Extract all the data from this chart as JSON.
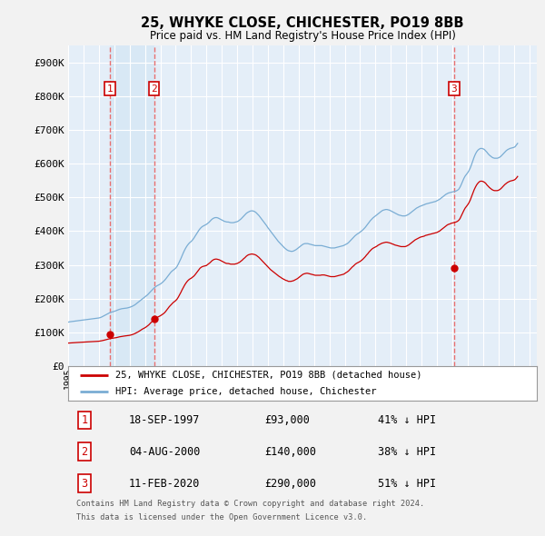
{
  "title": "25, WHYKE CLOSE, CHICHESTER, PO19 8BB",
  "subtitle": "Price paid vs. HM Land Registry's House Price Index (HPI)",
  "ylim": [
    0,
    950000
  ],
  "yticks": [
    0,
    100000,
    200000,
    300000,
    400000,
    500000,
    600000,
    700000,
    800000,
    900000
  ],
  "ytick_labels": [
    "£0",
    "£100K",
    "£200K",
    "£300K",
    "£400K",
    "£500K",
    "£600K",
    "£700K",
    "£800K",
    "£900K"
  ],
  "xlim_start": 1995.0,
  "xlim_end": 2025.5,
  "price_paid_color": "#cc0000",
  "hpi_color": "#7aadd4",
  "hpi_fill_color": "#c8dff0",
  "vline_color": "#e87070",
  "transaction_marker_color": "#cc0000",
  "background_color": "#f2f2f2",
  "plot_bg_color": "#e4eef8",
  "vband_color": "#d0e4f4",
  "grid_color": "#ffffff",
  "transactions": [
    {
      "date": 1997.72,
      "price": 93000,
      "label": "1"
    },
    {
      "date": 2000.59,
      "price": 140000,
      "label": "2"
    },
    {
      "date": 2020.12,
      "price": 290000,
      "label": "3"
    }
  ],
  "legend_line1": "25, WHYKE CLOSE, CHICHESTER, PO19 8BB (detached house)",
  "legend_line2": "HPI: Average price, detached house, Chichester",
  "table_data": [
    {
      "num": "1",
      "date": "18-SEP-1997",
      "price": "£93,000",
      "hpi_note": "41% ↓ HPI"
    },
    {
      "num": "2",
      "date": "04-AUG-2000",
      "price": "£140,000",
      "hpi_note": "38% ↓ HPI"
    },
    {
      "num": "3",
      "date": "11-FEB-2020",
      "price": "£290,000",
      "hpi_note": "51% ↓ HPI"
    }
  ],
  "footer_line1": "Contains HM Land Registry data © Crown copyright and database right 2024.",
  "footer_line2": "This data is licensed under the Open Government Licence v3.0.",
  "hpi_monthly_x": [
    1995.0,
    1995.083,
    1995.167,
    1995.25,
    1995.333,
    1995.417,
    1995.5,
    1995.583,
    1995.667,
    1995.75,
    1995.833,
    1995.917,
    1996.0,
    1996.083,
    1996.167,
    1996.25,
    1996.333,
    1996.417,
    1996.5,
    1996.583,
    1996.667,
    1996.75,
    1996.833,
    1996.917,
    1997.0,
    1997.083,
    1997.167,
    1997.25,
    1997.333,
    1997.417,
    1997.5,
    1997.583,
    1997.667,
    1997.75,
    1997.833,
    1997.917,
    1998.0,
    1998.083,
    1998.167,
    1998.25,
    1998.333,
    1998.417,
    1998.5,
    1998.583,
    1998.667,
    1998.75,
    1998.833,
    1998.917,
    1999.0,
    1999.083,
    1999.167,
    1999.25,
    1999.333,
    1999.417,
    1999.5,
    1999.583,
    1999.667,
    1999.75,
    1999.833,
    1999.917,
    2000.0,
    2000.083,
    2000.167,
    2000.25,
    2000.333,
    2000.417,
    2000.5,
    2000.583,
    2000.667,
    2000.75,
    2000.833,
    2000.917,
    2001.0,
    2001.083,
    2001.167,
    2001.25,
    2001.333,
    2001.417,
    2001.5,
    2001.583,
    2001.667,
    2001.75,
    2001.833,
    2001.917,
    2002.0,
    2002.083,
    2002.167,
    2002.25,
    2002.333,
    2002.417,
    2002.5,
    2002.583,
    2002.667,
    2002.75,
    2002.833,
    2002.917,
    2003.0,
    2003.083,
    2003.167,
    2003.25,
    2003.333,
    2003.417,
    2003.5,
    2003.583,
    2003.667,
    2003.75,
    2003.833,
    2003.917,
    2004.0,
    2004.083,
    2004.167,
    2004.25,
    2004.333,
    2004.417,
    2004.5,
    2004.583,
    2004.667,
    2004.75,
    2004.833,
    2004.917,
    2005.0,
    2005.083,
    2005.167,
    2005.25,
    2005.333,
    2005.417,
    2005.5,
    2005.583,
    2005.667,
    2005.75,
    2005.833,
    2005.917,
    2006.0,
    2006.083,
    2006.167,
    2006.25,
    2006.333,
    2006.417,
    2006.5,
    2006.583,
    2006.667,
    2006.75,
    2006.833,
    2006.917,
    2007.0,
    2007.083,
    2007.167,
    2007.25,
    2007.333,
    2007.417,
    2007.5,
    2007.583,
    2007.667,
    2007.75,
    2007.833,
    2007.917,
    2008.0,
    2008.083,
    2008.167,
    2008.25,
    2008.333,
    2008.417,
    2008.5,
    2008.583,
    2008.667,
    2008.75,
    2008.833,
    2008.917,
    2009.0,
    2009.083,
    2009.167,
    2009.25,
    2009.333,
    2009.417,
    2009.5,
    2009.583,
    2009.667,
    2009.75,
    2009.833,
    2009.917,
    2010.0,
    2010.083,
    2010.167,
    2010.25,
    2010.333,
    2010.417,
    2010.5,
    2010.583,
    2010.667,
    2010.75,
    2010.833,
    2010.917,
    2011.0,
    2011.083,
    2011.167,
    2011.25,
    2011.333,
    2011.417,
    2011.5,
    2011.583,
    2011.667,
    2011.75,
    2011.833,
    2011.917,
    2012.0,
    2012.083,
    2012.167,
    2012.25,
    2012.333,
    2012.417,
    2012.5,
    2012.583,
    2012.667,
    2012.75,
    2012.833,
    2012.917,
    2013.0,
    2013.083,
    2013.167,
    2013.25,
    2013.333,
    2013.417,
    2013.5,
    2013.583,
    2013.667,
    2013.75,
    2013.833,
    2013.917,
    2014.0,
    2014.083,
    2014.167,
    2014.25,
    2014.333,
    2014.417,
    2014.5,
    2014.583,
    2014.667,
    2014.75,
    2014.833,
    2014.917,
    2015.0,
    2015.083,
    2015.167,
    2015.25,
    2015.333,
    2015.417,
    2015.5,
    2015.583,
    2015.667,
    2015.75,
    2015.833,
    2015.917,
    2016.0,
    2016.083,
    2016.167,
    2016.25,
    2016.333,
    2016.417,
    2016.5,
    2016.583,
    2016.667,
    2016.75,
    2016.833,
    2016.917,
    2017.0,
    2017.083,
    2017.167,
    2017.25,
    2017.333,
    2017.417,
    2017.5,
    2017.583,
    2017.667,
    2017.75,
    2017.833,
    2017.917,
    2018.0,
    2018.083,
    2018.167,
    2018.25,
    2018.333,
    2018.417,
    2018.5,
    2018.583,
    2018.667,
    2018.75,
    2018.833,
    2018.917,
    2019.0,
    2019.083,
    2019.167,
    2019.25,
    2019.333,
    2019.417,
    2019.5,
    2019.583,
    2019.667,
    2019.75,
    2019.833,
    2019.917,
    2020.0,
    2020.083,
    2020.167,
    2020.25,
    2020.333,
    2020.417,
    2020.5,
    2020.583,
    2020.667,
    2020.75,
    2020.833,
    2020.917,
    2021.0,
    2021.083,
    2021.167,
    2021.25,
    2021.333,
    2021.417,
    2021.5,
    2021.583,
    2021.667,
    2021.75,
    2021.833,
    2021.917,
    2022.0,
    2022.083,
    2022.167,
    2022.25,
    2022.333,
    2022.417,
    2022.5,
    2022.583,
    2022.667,
    2022.75,
    2022.833,
    2022.917,
    2023.0,
    2023.083,
    2023.167,
    2023.25,
    2023.333,
    2023.417,
    2023.5,
    2023.583,
    2023.667,
    2023.75,
    2023.833,
    2023.917,
    2024.0,
    2024.083,
    2024.167,
    2024.25
  ],
  "hpi_monthly_y": [
    130000,
    131000,
    131500,
    132000,
    132500,
    133000,
    133500,
    134000,
    134500,
    135000,
    135500,
    136000,
    136500,
    137000,
    137500,
    138000,
    138500,
    139000,
    139500,
    140000,
    140500,
    141000,
    141500,
    142000,
    142500,
    143500,
    145000,
    147000,
    149000,
    151000,
    153000,
    155000,
    157000,
    159000,
    160000,
    161000,
    162000,
    163500,
    165000,
    166500,
    168000,
    169000,
    170000,
    170500,
    171000,
    171500,
    172000,
    173000,
    174000,
    175500,
    177000,
    179000,
    181000,
    184000,
    187000,
    190000,
    193000,
    196000,
    199000,
    202000,
    205000,
    208000,
    211000,
    215000,
    219000,
    223000,
    227000,
    231000,
    234000,
    237000,
    239000,
    241000,
    243000,
    246000,
    249000,
    253000,
    257000,
    262000,
    267000,
    272000,
    277000,
    281000,
    284000,
    287000,
    290000,
    295000,
    302000,
    310000,
    318000,
    327000,
    336000,
    344000,
    351000,
    357000,
    362000,
    366000,
    369000,
    373000,
    378000,
    384000,
    390000,
    396000,
    402000,
    407000,
    411000,
    414000,
    416000,
    418000,
    420000,
    423000,
    426000,
    430000,
    434000,
    437000,
    439000,
    440000,
    440000,
    439000,
    437000,
    435000,
    433000,
    431000,
    429000,
    428000,
    427000,
    427000,
    426000,
    425000,
    425000,
    425000,
    426000,
    427000,
    428000,
    430000,
    433000,
    436000,
    440000,
    444000,
    448000,
    452000,
    455000,
    457000,
    459000,
    460000,
    460000,
    459000,
    457000,
    454000,
    450000,
    446000,
    441000,
    436000,
    431000,
    426000,
    421000,
    416000,
    410000,
    405000,
    400000,
    395000,
    390000,
    385000,
    380000,
    375000,
    370000,
    366000,
    362000,
    358000,
    354000,
    350000,
    347000,
    344000,
    342000,
    341000,
    340000,
    340000,
    341000,
    343000,
    345000,
    348000,
    351000,
    354000,
    357000,
    360000,
    362000,
    363000,
    363000,
    363000,
    362000,
    361000,
    360000,
    359000,
    358000,
    357000,
    357000,
    357000,
    357000,
    357000,
    357000,
    356000,
    355000,
    354000,
    353000,
    352000,
    351000,
    350000,
    350000,
    350000,
    350000,
    351000,
    352000,
    353000,
    354000,
    355000,
    356000,
    357000,
    359000,
    361000,
    363000,
    366000,
    370000,
    374000,
    378000,
    382000,
    386000,
    389000,
    392000,
    394000,
    397000,
    400000,
    403000,
    407000,
    411000,
    416000,
    421000,
    426000,
    431000,
    435000,
    439000,
    442000,
    445000,
    448000,
    451000,
    454000,
    457000,
    460000,
    462000,
    463000,
    464000,
    464000,
    463000,
    462000,
    460000,
    458000,
    456000,
    454000,
    452000,
    450000,
    448000,
    447000,
    446000,
    445000,
    445000,
    445000,
    446000,
    448000,
    450000,
    453000,
    456000,
    459000,
    462000,
    465000,
    468000,
    470000,
    472000,
    474000,
    475000,
    477000,
    478000,
    480000,
    481000,
    482000,
    483000,
    484000,
    485000,
    486000,
    487000,
    488000,
    490000,
    492000,
    494000,
    497000,
    500000,
    503000,
    506000,
    509000,
    511000,
    513000,
    514000,
    515000,
    516000,
    517000,
    518000,
    519000,
    521000,
    524000,
    530000,
    538000,
    547000,
    556000,
    563000,
    568000,
    573000,
    579000,
    587000,
    597000,
    608000,
    619000,
    628000,
    635000,
    640000,
    643000,
    645000,
    645000,
    644000,
    642000,
    638000,
    634000,
    629000,
    625000,
    622000,
    619000,
    617000,
    616000,
    616000,
    616000,
    617000,
    619000,
    622000,
    626000,
    630000,
    634000,
    638000,
    641000,
    643000,
    645000,
    646000,
    647000,
    648000,
    650000,
    655000,
    660000
  ],
  "pp_monthly_x": [
    1995.0,
    1995.083,
    1995.167,
    1995.25,
    1995.333,
    1995.417,
    1995.5,
    1995.583,
    1995.667,
    1995.75,
    1995.833,
    1995.917,
    1996.0,
    1996.083,
    1996.167,
    1996.25,
    1996.333,
    1996.417,
    1996.5,
    1996.583,
    1996.667,
    1996.75,
    1996.833,
    1996.917,
    1997.0,
    1997.083,
    1997.167,
    1997.25,
    1997.333,
    1997.417,
    1997.5,
    1997.583,
    1997.667,
    1997.75,
    1997.833,
    1997.917,
    1998.0,
    1998.083,
    1998.167,
    1998.25,
    1998.333,
    1998.417,
    1998.5,
    1998.583,
    1998.667,
    1998.75,
    1998.833,
    1998.917,
    1999.0,
    1999.083,
    1999.167,
    1999.25,
    1999.333,
    1999.417,
    1999.5,
    1999.583,
    1999.667,
    1999.75,
    1999.833,
    1999.917,
    2000.0,
    2000.083,
    2000.167,
    2000.25,
    2000.333,
    2000.417,
    2000.5,
    2000.583,
    2000.667,
    2000.75,
    2000.833,
    2000.917,
    2001.0,
    2001.083,
    2001.167,
    2001.25,
    2001.333,
    2001.417,
    2001.5,
    2001.583,
    2001.667,
    2001.75,
    2001.833,
    2001.917,
    2002.0,
    2002.083,
    2002.167,
    2002.25,
    2002.333,
    2002.417,
    2002.5,
    2002.583,
    2002.667,
    2002.75,
    2002.833,
    2002.917,
    2003.0,
    2003.083,
    2003.167,
    2003.25,
    2003.333,
    2003.417,
    2003.5,
    2003.583,
    2003.667,
    2003.75,
    2003.833,
    2003.917,
    2004.0,
    2004.083,
    2004.167,
    2004.25,
    2004.333,
    2004.417,
    2004.5,
    2004.583,
    2004.667,
    2004.75,
    2004.833,
    2004.917,
    2005.0,
    2005.083,
    2005.167,
    2005.25,
    2005.333,
    2005.417,
    2005.5,
    2005.583,
    2005.667,
    2005.75,
    2005.833,
    2005.917,
    2006.0,
    2006.083,
    2006.167,
    2006.25,
    2006.333,
    2006.417,
    2006.5,
    2006.583,
    2006.667,
    2006.75,
    2006.833,
    2006.917,
    2007.0,
    2007.083,
    2007.167,
    2007.25,
    2007.333,
    2007.417,
    2007.5,
    2007.583,
    2007.667,
    2007.75,
    2007.833,
    2007.917,
    2008.0,
    2008.083,
    2008.167,
    2008.25,
    2008.333,
    2008.417,
    2008.5,
    2008.583,
    2008.667,
    2008.75,
    2008.833,
    2008.917,
    2009.0,
    2009.083,
    2009.167,
    2009.25,
    2009.333,
    2009.417,
    2009.5,
    2009.583,
    2009.667,
    2009.75,
    2009.833,
    2009.917,
    2010.0,
    2010.083,
    2010.167,
    2010.25,
    2010.333,
    2010.417,
    2010.5,
    2010.583,
    2010.667,
    2010.75,
    2010.833,
    2010.917,
    2011.0,
    2011.083,
    2011.167,
    2011.25,
    2011.333,
    2011.417,
    2011.5,
    2011.583,
    2011.667,
    2011.75,
    2011.833,
    2011.917,
    2012.0,
    2012.083,
    2012.167,
    2012.25,
    2012.333,
    2012.417,
    2012.5,
    2012.583,
    2012.667,
    2012.75,
    2012.833,
    2012.917,
    2013.0,
    2013.083,
    2013.167,
    2013.25,
    2013.333,
    2013.417,
    2013.5,
    2013.583,
    2013.667,
    2013.75,
    2013.833,
    2013.917,
    2014.0,
    2014.083,
    2014.167,
    2014.25,
    2014.333,
    2014.417,
    2014.5,
    2014.583,
    2014.667,
    2014.75,
    2014.833,
    2014.917,
    2015.0,
    2015.083,
    2015.167,
    2015.25,
    2015.333,
    2015.417,
    2015.5,
    2015.583,
    2015.667,
    2015.75,
    2015.833,
    2015.917,
    2016.0,
    2016.083,
    2016.167,
    2016.25,
    2016.333,
    2016.417,
    2016.5,
    2016.583,
    2016.667,
    2016.75,
    2016.833,
    2016.917,
    2017.0,
    2017.083,
    2017.167,
    2017.25,
    2017.333,
    2017.417,
    2017.5,
    2017.583,
    2017.667,
    2017.75,
    2017.833,
    2017.917,
    2018.0,
    2018.083,
    2018.167,
    2018.25,
    2018.333,
    2018.417,
    2018.5,
    2018.583,
    2018.667,
    2018.75,
    2018.833,
    2018.917,
    2019.0,
    2019.083,
    2019.167,
    2019.25,
    2019.333,
    2019.417,
    2019.5,
    2019.583,
    2019.667,
    2019.75,
    2019.833,
    2019.917,
    2020.0,
    2020.083,
    2020.167,
    2020.25,
    2020.333,
    2020.417,
    2020.5,
    2020.583,
    2020.667,
    2020.75,
    2020.833,
    2020.917,
    2021.0,
    2021.083,
    2021.167,
    2021.25,
    2021.333,
    2021.417,
    2021.5,
    2021.583,
    2021.667,
    2021.75,
    2021.833,
    2021.917,
    2022.0,
    2022.083,
    2022.167,
    2022.25,
    2022.333,
    2022.417,
    2022.5,
    2022.583,
    2022.667,
    2022.75,
    2022.833,
    2022.917,
    2023.0,
    2023.083,
    2023.167,
    2023.25,
    2023.333,
    2023.417,
    2023.5,
    2023.583,
    2023.667,
    2023.75,
    2023.833,
    2023.917,
    2024.0,
    2024.083,
    2024.167,
    2024.25
  ],
  "pp_monthly_y": [
    68000,
    68200,
    68400,
    68700,
    69000,
    69200,
    69500,
    69800,
    70000,
    70200,
    70400,
    70600,
    70800,
    71000,
    71200,
    71400,
    71600,
    71800,
    72000,
    72200,
    72500,
    72800,
    73000,
    73200,
    73500,
    74000,
    74800,
    75500,
    76500,
    77500,
    78500,
    79500,
    80500,
    81500,
    82000,
    82500,
    83000,
    83800,
    84500,
    85500,
    86500,
    87200,
    88000,
    88500,
    89000,
    89500,
    90000,
    90500,
    91000,
    92000,
    93000,
    94500,
    96000,
    98000,
    100000,
    102000,
    104500,
    107000,
    109500,
    111500,
    113500,
    116000,
    119000,
    122000,
    126000,
    130000,
    134000,
    138000,
    141000,
    143000,
    145000,
    147000,
    149000,
    151500,
    154000,
    157000,
    161000,
    166000,
    171000,
    176000,
    180000,
    184000,
    188000,
    191000,
    194000,
    198000,
    204000,
    211000,
    218000,
    226000,
    233000,
    240000,
    246000,
    251000,
    255000,
    258000,
    260000,
    263000,
    266000,
    270000,
    275000,
    280000,
    285000,
    290000,
    293000,
    295000,
    296000,
    297000,
    298000,
    301000,
    304000,
    307000,
    311000,
    314000,
    316000,
    317000,
    317000,
    316000,
    315000,
    313000,
    311000,
    309000,
    307000,
    305000,
    304000,
    304000,
    303000,
    302000,
    302000,
    302000,
    302000,
    303000,
    304000,
    306000,
    308000,
    311000,
    314000,
    318000,
    321000,
    325000,
    328000,
    330000,
    331000,
    332000,
    332000,
    331000,
    330000,
    328000,
    325000,
    322000,
    318000,
    314000,
    310000,
    306000,
    302000,
    298000,
    294000,
    290000,
    286000,
    283000,
    280000,
    277000,
    274000,
    271000,
    268000,
    265000,
    263000,
    260000,
    258000,
    256000,
    254000,
    253000,
    251000,
    251000,
    251000,
    252000,
    253000,
    255000,
    257000,
    259000,
    262000,
    265000,
    268000,
    271000,
    273000,
    274000,
    275000,
    275000,
    274000,
    273000,
    272000,
    271000,
    270000,
    269000,
    269000,
    269000,
    269000,
    269000,
    270000,
    270000,
    270000,
    269000,
    268000,
    267000,
    266000,
    265000,
    265000,
    265000,
    265000,
    266000,
    267000,
    268000,
    269000,
    270000,
    271000,
    272000,
    274000,
    277000,
    279000,
    282000,
    286000,
    290000,
    294000,
    297000,
    301000,
    304000,
    306000,
    308000,
    310000,
    313000,
    316000,
    320000,
    324000,
    329000,
    333000,
    338000,
    342000,
    346000,
    349000,
    351000,
    353000,
    355000,
    358000,
    360000,
    362000,
    364000,
    365000,
    366000,
    367000,
    367000,
    366000,
    365000,
    364000,
    362000,
    361000,
    359000,
    358000,
    357000,
    356000,
    355000,
    354000,
    354000,
    354000,
    354000,
    355000,
    357000,
    359000,
    362000,
    365000,
    368000,
    371000,
    374000,
    376000,
    378000,
    380000,
    382000,
    383000,
    384000,
    385000,
    387000,
    388000,
    389000,
    390000,
    391000,
    392000,
    393000,
    394000,
    395000,
    396000,
    398000,
    400000,
    403000,
    406000,
    409000,
    412000,
    415000,
    418000,
    420000,
    421000,
    423000,
    424000,
    425000,
    426000,
    427000,
    429000,
    432000,
    437000,
    445000,
    453000,
    461000,
    468000,
    473000,
    478000,
    484000,
    492000,
    502000,
    512000,
    522000,
    530000,
    537000,
    542000,
    546000,
    548000,
    548000,
    547000,
    545000,
    542000,
    537000,
    533000,
    529000,
    526000,
    523000,
    521000,
    520000,
    520000,
    520000,
    521000,
    523000,
    526000,
    530000,
    534000,
    538000,
    541000,
    544000,
    546000,
    548000,
    549000,
    550000,
    551000,
    553000,
    557000,
    562000
  ]
}
